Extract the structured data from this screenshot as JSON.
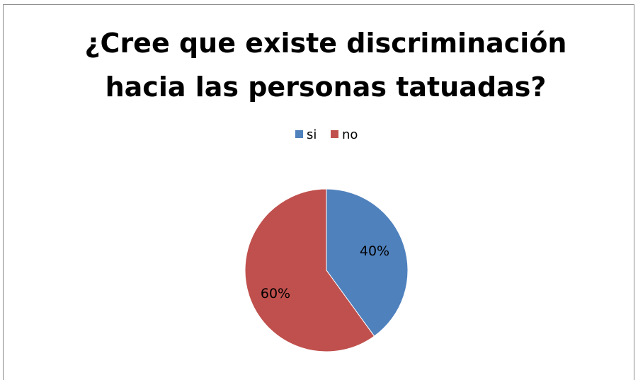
{
  "chart_data": {
    "type": "pie",
    "title": [
      "¿Cree que existe discriminación",
      "hacia las personas tatuadas?"
    ],
    "categories": [
      "si",
      "no"
    ],
    "values": [
      40,
      60
    ],
    "labels": [
      "40%",
      "60%"
    ],
    "colors": [
      "#4F81BD",
      "#C0504D"
    ],
    "legend_position": "top",
    "start_angle": "12 o'clock, clockwise"
  }
}
